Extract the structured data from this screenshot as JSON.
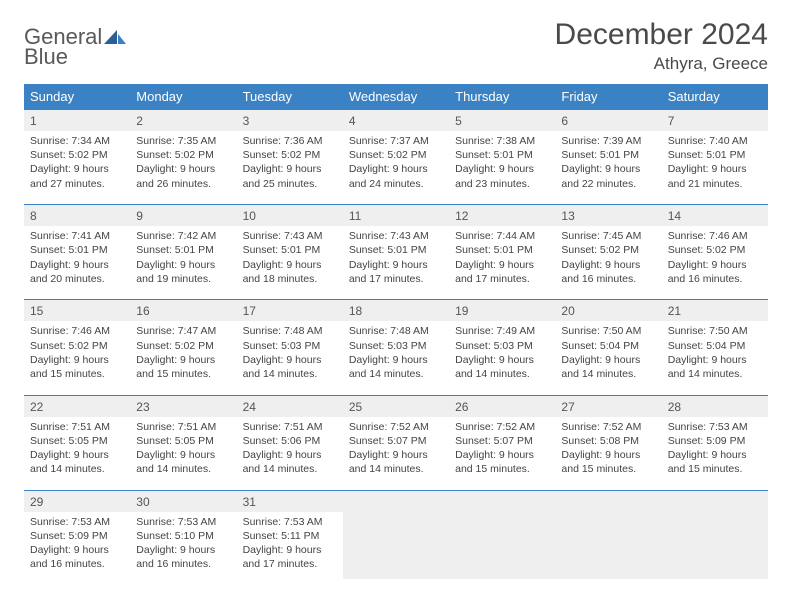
{
  "logo": {
    "part1": "General",
    "part2": "Blue",
    "icon_color": "#3b7fc4"
  },
  "title": "December 2024",
  "location": "Athyra, Greece",
  "colors": {
    "header_bg": "#3b82c4",
    "header_text": "#ffffff",
    "daynum_bg": "#efefef",
    "border": "#3b82c4",
    "text": "#444444"
  },
  "day_names": [
    "Sunday",
    "Monday",
    "Tuesday",
    "Wednesday",
    "Thursday",
    "Friday",
    "Saturday"
  ],
  "days": [
    {
      "n": 1,
      "sr": "7:34 AM",
      "ss": "5:02 PM",
      "dl": "9 hours and 27 minutes."
    },
    {
      "n": 2,
      "sr": "7:35 AM",
      "ss": "5:02 PM",
      "dl": "9 hours and 26 minutes."
    },
    {
      "n": 3,
      "sr": "7:36 AM",
      "ss": "5:02 PM",
      "dl": "9 hours and 25 minutes."
    },
    {
      "n": 4,
      "sr": "7:37 AM",
      "ss": "5:02 PM",
      "dl": "9 hours and 24 minutes."
    },
    {
      "n": 5,
      "sr": "7:38 AM",
      "ss": "5:01 PM",
      "dl": "9 hours and 23 minutes."
    },
    {
      "n": 6,
      "sr": "7:39 AM",
      "ss": "5:01 PM",
      "dl": "9 hours and 22 minutes."
    },
    {
      "n": 7,
      "sr": "7:40 AM",
      "ss": "5:01 PM",
      "dl": "9 hours and 21 minutes."
    },
    {
      "n": 8,
      "sr": "7:41 AM",
      "ss": "5:01 PM",
      "dl": "9 hours and 20 minutes."
    },
    {
      "n": 9,
      "sr": "7:42 AM",
      "ss": "5:01 PM",
      "dl": "9 hours and 19 minutes."
    },
    {
      "n": 10,
      "sr": "7:43 AM",
      "ss": "5:01 PM",
      "dl": "9 hours and 18 minutes."
    },
    {
      "n": 11,
      "sr": "7:43 AM",
      "ss": "5:01 PM",
      "dl": "9 hours and 17 minutes."
    },
    {
      "n": 12,
      "sr": "7:44 AM",
      "ss": "5:01 PM",
      "dl": "9 hours and 17 minutes."
    },
    {
      "n": 13,
      "sr": "7:45 AM",
      "ss": "5:02 PM",
      "dl": "9 hours and 16 minutes."
    },
    {
      "n": 14,
      "sr": "7:46 AM",
      "ss": "5:02 PM",
      "dl": "9 hours and 16 minutes."
    },
    {
      "n": 15,
      "sr": "7:46 AM",
      "ss": "5:02 PM",
      "dl": "9 hours and 15 minutes."
    },
    {
      "n": 16,
      "sr": "7:47 AM",
      "ss": "5:02 PM",
      "dl": "9 hours and 15 minutes."
    },
    {
      "n": 17,
      "sr": "7:48 AM",
      "ss": "5:03 PM",
      "dl": "9 hours and 14 minutes."
    },
    {
      "n": 18,
      "sr": "7:48 AM",
      "ss": "5:03 PM",
      "dl": "9 hours and 14 minutes."
    },
    {
      "n": 19,
      "sr": "7:49 AM",
      "ss": "5:03 PM",
      "dl": "9 hours and 14 minutes."
    },
    {
      "n": 20,
      "sr": "7:50 AM",
      "ss": "5:04 PM",
      "dl": "9 hours and 14 minutes."
    },
    {
      "n": 21,
      "sr": "7:50 AM",
      "ss": "5:04 PM",
      "dl": "9 hours and 14 minutes."
    },
    {
      "n": 22,
      "sr": "7:51 AM",
      "ss": "5:05 PM",
      "dl": "9 hours and 14 minutes."
    },
    {
      "n": 23,
      "sr": "7:51 AM",
      "ss": "5:05 PM",
      "dl": "9 hours and 14 minutes."
    },
    {
      "n": 24,
      "sr": "7:51 AM",
      "ss": "5:06 PM",
      "dl": "9 hours and 14 minutes."
    },
    {
      "n": 25,
      "sr": "7:52 AM",
      "ss": "5:07 PM",
      "dl": "9 hours and 14 minutes."
    },
    {
      "n": 26,
      "sr": "7:52 AM",
      "ss": "5:07 PM",
      "dl": "9 hours and 15 minutes."
    },
    {
      "n": 27,
      "sr": "7:52 AM",
      "ss": "5:08 PM",
      "dl": "9 hours and 15 minutes."
    },
    {
      "n": 28,
      "sr": "7:53 AM",
      "ss": "5:09 PM",
      "dl": "9 hours and 15 minutes."
    },
    {
      "n": 29,
      "sr": "7:53 AM",
      "ss": "5:09 PM",
      "dl": "9 hours and 16 minutes."
    },
    {
      "n": 30,
      "sr": "7:53 AM",
      "ss": "5:10 PM",
      "dl": "9 hours and 16 minutes."
    },
    {
      "n": 31,
      "sr": "7:53 AM",
      "ss": "5:11 PM",
      "dl": "9 hours and 17 minutes."
    }
  ],
  "labels": {
    "sunrise": "Sunrise:",
    "sunset": "Sunset:",
    "daylight": "Daylight:"
  },
  "first_weekday": 0,
  "columns": 7
}
